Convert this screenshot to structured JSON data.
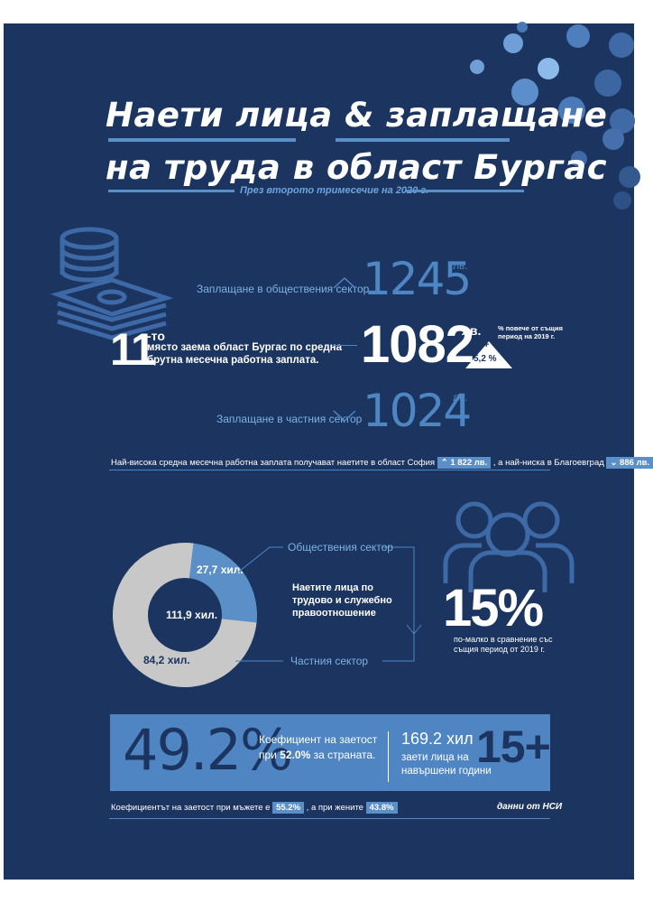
{
  "title": {
    "line1": "Наети лица & заплащане",
    "line2": "на труда в област Бургас",
    "subtitle": "През второто тримесечие на 2020 г."
  },
  "wages": {
    "public_label": "Заплащане в обществения сектор",
    "public_value": "1245",
    "public_unit": "лв.",
    "rank_number": "11",
    "rank_suffix": "-то",
    "rank_text_1": "място заема област Бургас по средна",
    "rank_text_2": "брутна месечна работна заплата.",
    "avg_value": "1082",
    "avg_unit": "лв.",
    "growth_note_1": "% повече от същия",
    "growth_note_2": "период на 2019 г.",
    "growth_sign": "+",
    "growth_value": "5,2 %",
    "private_label": "Заплащане в частния сектор",
    "private_value": "1024",
    "private_unit": "лв.",
    "extremes_prefix": "Най-висока средна месечна работна заплата получават наетите в област София",
    "sofia_value": "1 822 лв.",
    "extremes_middle": ", а най-ниска в Благоевград",
    "blagoevgrad_value": "886 лв."
  },
  "employment": {
    "donut_total": "111,9 хил.",
    "public_value": "27,7 хил.",
    "private_value": "84,2 хил.",
    "public_label": "Обществения сектор",
    "private_label": "Частния сектор",
    "center_text_1": "Наетите лица по",
    "center_text_2": "трудово и служебно",
    "center_text_3": "правоотношение",
    "change_value": "15%",
    "change_text_1": "по-малко в сравнение със",
    "change_text_2": "същия период от 2019 г."
  },
  "rate": {
    "value": "49.2%",
    "label_1": "Коефициент на заетост",
    "label_2_prefix": "при",
    "country_value": "52.0%",
    "label_2_suffix": "за страната.",
    "employed_value": "169.2 хил",
    "employed_text_1": "заети лица на",
    "employed_text_2": "навършени години",
    "age_value": "15+"
  },
  "footer": {
    "prefix": "Коефициентът на заетост при мъжете е",
    "men_value": "55.2%",
    "middle": ", а при жените",
    "women_value": "43.8%",
    "source": "данни от НСИ"
  },
  "chart_data": {
    "type": "pie",
    "categories": [
      "Обществения сектор",
      "Частния сектор"
    ],
    "values": [
      27.7,
      84.2
    ],
    "total": 111.9
  },
  "colors": {
    "background": "#1b3560",
    "accent": "#5b8fc7",
    "light": "#7fb0e4",
    "grey": "#c8c8c8"
  }
}
